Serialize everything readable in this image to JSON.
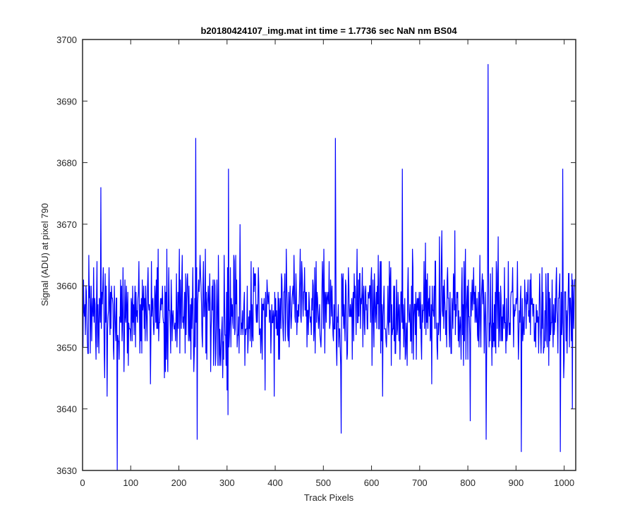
{
  "chart_data": {
    "type": "line",
    "title": "b20180424107_img.mat int time = 1.7736 sec  NaN nm BS04",
    "xlabel": "Track Pixels",
    "ylabel": "Signal (ADU) at pixel 790",
    "xlim": [
      0,
      1024
    ],
    "ylim": [
      3630,
      3700
    ],
    "x_ticks": [
      0,
      100,
      200,
      300,
      400,
      500,
      600,
      700,
      800,
      900,
      1000
    ],
    "y_ticks": [
      3630,
      3640,
      3650,
      3660,
      3670,
      3680,
      3690,
      3700
    ],
    "grid": false,
    "legend": "none",
    "series_color": "#0000ff",
    "n_points": 1024,
    "baseline_mean": 3656,
    "noise_range": [
      3642,
      3668
    ],
    "notable_points": [
      {
        "x": 72,
        "y": 3630
      },
      {
        "x": 38,
        "y": 3676
      },
      {
        "x": 235,
        "y": 3684
      },
      {
        "x": 238,
        "y": 3635
      },
      {
        "x": 303,
        "y": 3679
      },
      {
        "x": 525,
        "y": 3684
      },
      {
        "x": 537,
        "y": 3636
      },
      {
        "x": 664,
        "y": 3679
      },
      {
        "x": 838,
        "y": 3635
      },
      {
        "x": 842,
        "y": 3696
      },
      {
        "x": 911,
        "y": 3633
      },
      {
        "x": 992,
        "y": 3633
      },
      {
        "x": 997,
        "y": 3679
      },
      {
        "x": 1017,
        "y": 3640
      }
    ]
  }
}
